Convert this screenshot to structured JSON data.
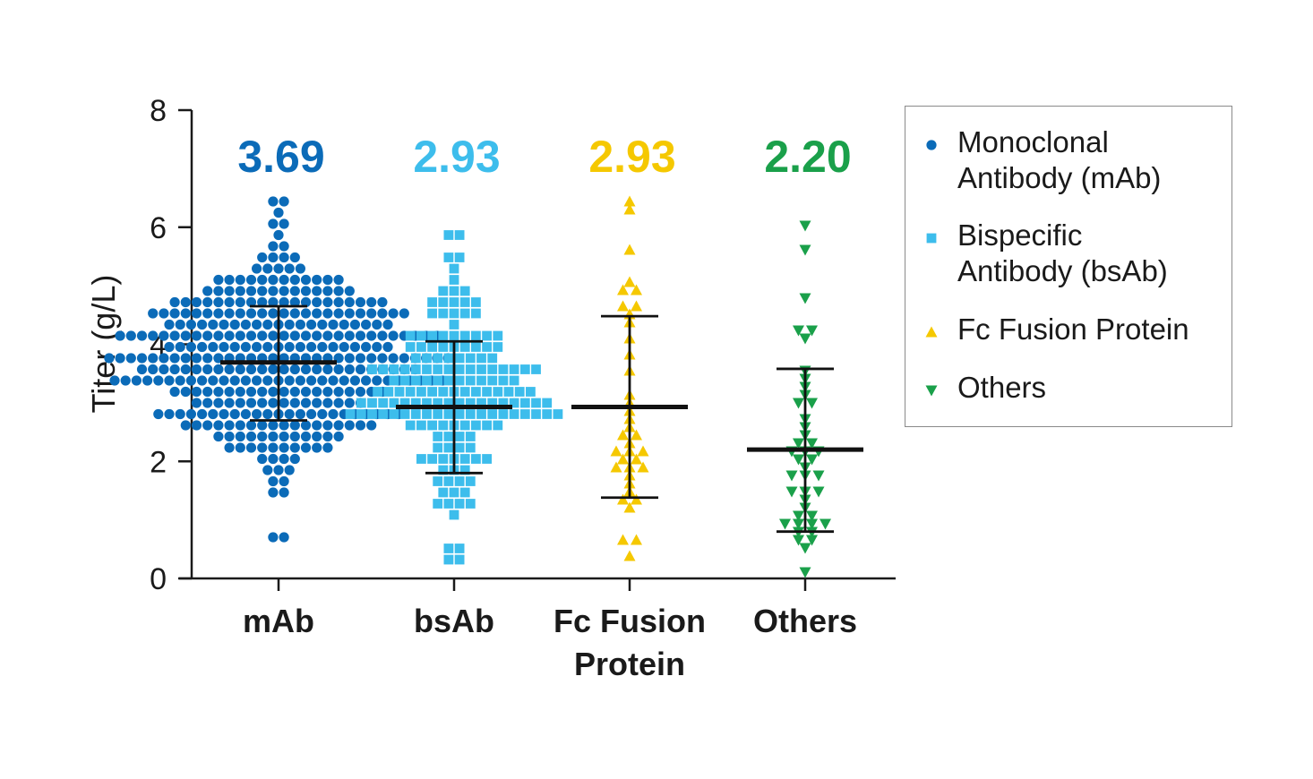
{
  "chart_data": {
    "type": "scatter",
    "subtype": "dot-plot-with-mean-and-sd",
    "ylabel": "Titer (g/L)",
    "xlabel": "",
    "ylim": [
      0,
      8
    ],
    "yticks": [
      "0",
      "2",
      "4",
      "6",
      "8"
    ],
    "categories": [
      "mAb",
      "bsAb",
      "Fc Fusion Protein",
      "Others"
    ],
    "category_labels": [
      [
        "mAb"
      ],
      [
        "bsAb"
      ],
      [
        "Fc Fusion",
        "Protein"
      ],
      [
        "Others"
      ]
    ],
    "series": [
      {
        "name": "Monoclonal Antibody (mAb)",
        "legend_lines": [
          "Monoclonal",
          "Antibody (mAb)"
        ],
        "category": "mAb",
        "marker": "circle",
        "color": "#0b6bb8",
        "mean": 3.69,
        "mean_label": "3.69",
        "sd_low": 2.7,
        "sd_high": 4.65,
        "n": 360,
        "min": 0.75,
        "max": 6.52,
        "outliers_high": [
          6.52,
          6.35,
          6.18,
          6.15,
          6.15,
          5.95,
          5.7,
          5.6,
          5.55,
          5.5,
          5.45
        ],
        "outliers_low": [
          1.75,
          1.6,
          1.55,
          1.4,
          0.75,
          0.75
        ]
      },
      {
        "name": "Bispecific Antibody (bsAb)",
        "legend_lines": [
          "Bispecific",
          "Antibody (bsAb)"
        ],
        "category": "bsAb",
        "marker": "square",
        "color": "#3dbdec",
        "mean": 2.93,
        "mean_label": "2.93",
        "sd_low": 1.8,
        "sd_high": 4.05,
        "n": 170,
        "min": 0.27,
        "max": 5.92,
        "outliers_high": [
          5.92,
          5.8,
          5.55,
          5.4,
          5.2
        ],
        "outliers_low": [
          1.25,
          1.1,
          0.6,
          0.45,
          0.3,
          0.27
        ]
      },
      {
        "name": "Fc Fusion Protein",
        "legend_lines": [
          "Fc Fusion Protein"
        ],
        "category": "Fc Fusion Protein",
        "marker": "triangle-up",
        "color": "#f5c800",
        "mean": 2.93,
        "mean_label": "2.93",
        "sd_low": 1.38,
        "sd_high": 4.48,
        "points": [
          6.42,
          6.28,
          5.68,
          5.0,
          4.95,
          4.9,
          4.7,
          4.65,
          4.55,
          4.35,
          4.1,
          3.8,
          3.5,
          3.2,
          3.05,
          2.9,
          2.75,
          2.6,
          2.5,
          2.4,
          2.3,
          2.2,
          2.2,
          2.2,
          2.1,
          2.0,
          1.95,
          1.9,
          1.85,
          1.75,
          1.6,
          1.5,
          1.4,
          1.3,
          1.2,
          0.65,
          0.6,
          0.45
        ]
      },
      {
        "name": "Others",
        "legend_lines": [
          "Others"
        ],
        "category": "Others",
        "marker": "triangle-down",
        "color": "#1aa04a",
        "mean": 2.2,
        "mean_label": "2.20",
        "sd_low": 0.8,
        "sd_high": 3.58,
        "points": [
          6.0,
          5.6,
          4.75,
          4.3,
          4.25,
          4.1,
          3.55,
          3.45,
          3.3,
          3.2,
          3.05,
          2.95,
          2.7,
          2.55,
          2.5,
          2.35,
          2.3,
          2.2,
          2.2,
          2.15,
          2.05,
          2.0,
          1.95,
          1.8,
          1.75,
          1.7,
          1.55,
          1.5,
          1.45,
          1.3,
          1.25,
          1.1,
          1.05,
          1.0,
          0.95,
          0.9,
          0.9,
          0.85,
          0.8,
          0.7,
          0.6,
          0.5,
          0.1
        ]
      }
    ],
    "legend_position": "right"
  }
}
